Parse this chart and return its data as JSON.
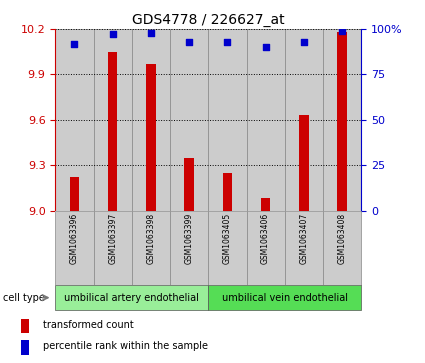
{
  "title": "GDS4778 / 226627_at",
  "samples": [
    "GSM1063396",
    "GSM1063397",
    "GSM1063398",
    "GSM1063399",
    "GSM1063405",
    "GSM1063406",
    "GSM1063407",
    "GSM1063408"
  ],
  "transformed_counts": [
    9.22,
    10.05,
    9.97,
    9.35,
    9.25,
    9.08,
    9.63,
    10.18
  ],
  "percentile_ranks": [
    92,
    97,
    98,
    93,
    93,
    90,
    93,
    99
  ],
  "ylim_left": [
    9.0,
    10.2
  ],
  "yticks_left": [
    9.0,
    9.3,
    9.6,
    9.9,
    10.2
  ],
  "ylim_right": [
    0,
    100
  ],
  "yticks_right": [
    0,
    25,
    50,
    75,
    100
  ],
  "bar_color": "#cc0000",
  "dot_color": "#0000cc",
  "cell_types": [
    {
      "label": "umbilical artery endothelial",
      "start": 0,
      "end": 3,
      "color": "#99ee99"
    },
    {
      "label": "umbilical vein endothelial",
      "start": 4,
      "end": 7,
      "color": "#55dd55"
    }
  ],
  "cell_type_label": "cell type",
  "legend_bar_label": "transformed count",
  "legend_dot_label": "percentile rank within the sample",
  "background_color": "#ffffff",
  "label_color_left": "#cc0000",
  "label_color_right": "#0000cc",
  "grid_color": "#000000",
  "sample_bg_color": "#cccccc",
  "bar_width": 0.25
}
